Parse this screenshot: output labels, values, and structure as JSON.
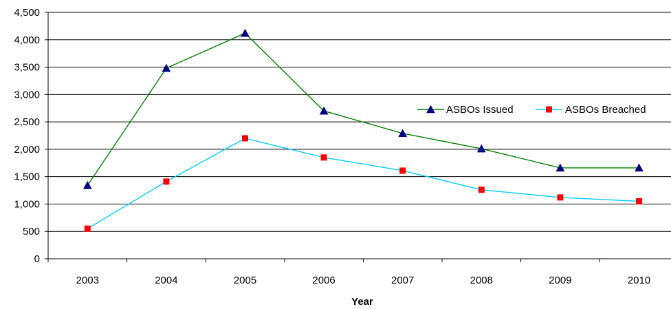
{
  "chart_data": {
    "type": "line",
    "title": "",
    "xlabel": "Year",
    "ylabel": "",
    "categories": [
      "2003",
      "2004",
      "2005",
      "2006",
      "2007",
      "2008",
      "2009",
      "2010"
    ],
    "ylim": [
      0,
      4500
    ],
    "yticks": [
      0,
      500,
      1000,
      1500,
      2000,
      2500,
      3000,
      3500,
      4000,
      4500
    ],
    "ytick_labels": [
      "0",
      "500",
      "1,000",
      "1,500",
      "2,000",
      "2,500",
      "3,000",
      "3,500",
      "4,000",
      "4,500"
    ],
    "grid": "horizontal",
    "legend_position": "right",
    "series": [
      {
        "name": "ASBOs Issued",
        "values": [
          1340,
          3480,
          4120,
          2700,
          2290,
          2010,
          1660,
          1660
        ],
        "line_color": "#008000",
        "marker": "triangle",
        "marker_color": "#000080"
      },
      {
        "name": "ASBOs Breached",
        "values": [
          550,
          1410,
          2200,
          1850,
          1610,
          1260,
          1120,
          1050
        ],
        "line_color": "#00ccff",
        "marker": "square",
        "marker_color": "#ff0000"
      }
    ]
  }
}
